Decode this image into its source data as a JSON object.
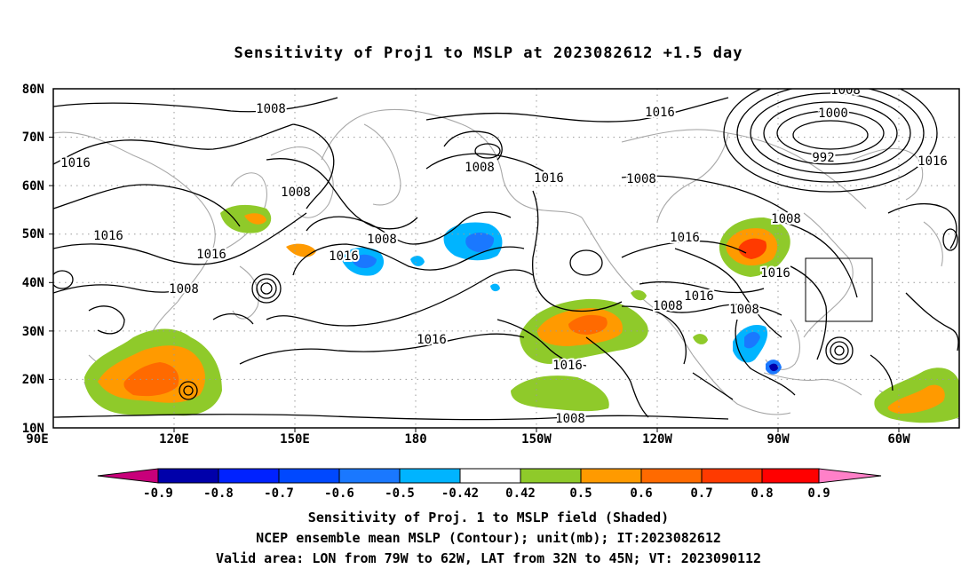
{
  "title": "Sensitivity of Proj1 to MSLP at 2023082612 +1.5 day",
  "map": {
    "lat_labels": [
      "80N",
      "70N",
      "60N",
      "50N",
      "40N",
      "30N",
      "20N",
      "10N"
    ],
    "lon_labels": [
      "90E",
      "120E",
      "150E",
      "180",
      "150W",
      "120W",
      "90W",
      "60W"
    ],
    "lon_range": [
      90,
      315
    ],
    "lat_range": [
      10,
      80
    ],
    "contour_labels": [
      "1008",
      "1008",
      "1016",
      "1016",
      "1008",
      "1016",
      "1008",
      "1008",
      "1016",
      "1016",
      "1008",
      "1000",
      "992",
      "1016",
      "1016",
      "1008",
      "1016",
      "1016",
      "1016",
      "1008",
      "1016",
      "1008",
      "1008",
      "1016",
      "1008",
      "1016"
    ],
    "valid_area": {
      "lon": [
        -79,
        -62
      ],
      "lat": [
        32,
        45
      ]
    }
  },
  "colorbar": {
    "labels": [
      "-0.9",
      "-0.8",
      "-0.7",
      "-0.6",
      "-0.5",
      "-0.42",
      "0.42",
      "0.5",
      "0.6",
      "0.7",
      "0.8",
      "0.9"
    ],
    "colors": [
      "#c8007a",
      "#0000aa",
      "#0022ff",
      "#0048ff",
      "#1a78ff",
      "#00b4ff",
      "#ffffff",
      "#8fca2a",
      "#ff9a00",
      "#ff6a00",
      "#ff3a00",
      "#ff0000",
      "#ff80c8"
    ]
  },
  "footer": {
    "line1": "Sensitivity of Proj. 1 to MSLP field (Shaded)",
    "line2": "NCEP ensemble mean MSLP (Contour); unit(mb); IT:2023082612",
    "line3": "Valid area: LON from 79W to 62W, LAT from 32N to 45N; VT: 2023090112"
  }
}
